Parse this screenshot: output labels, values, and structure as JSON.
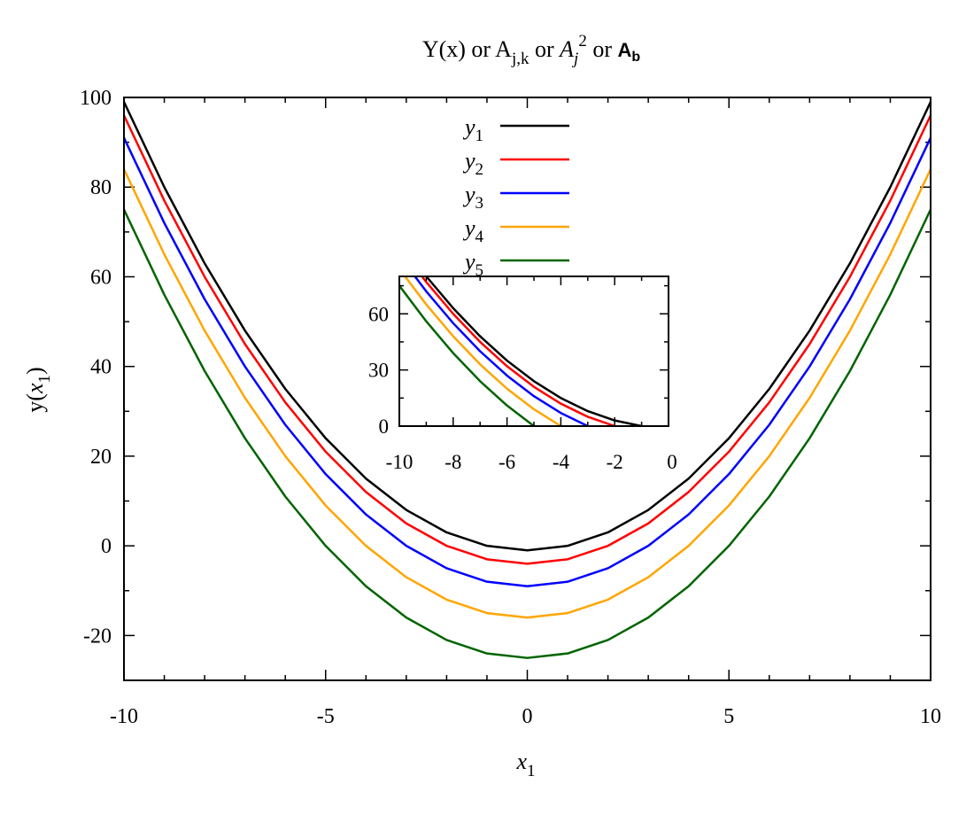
{
  "chart_data": [
    {
      "type": "line",
      "title": {
        "Y": "Y(x) or A",
        "Y_sub": "j,k",
        "mid": " or ",
        "A2": "A",
        "A2_sub": "j",
        "A2_sup": "2",
        "end": " or ",
        "Ab": "A",
        "Ab_sub": "b"
      },
      "xlabel": {
        "base": "x",
        "sub": "1"
      },
      "ylabel": {
        "pre": "y(",
        "base": "x",
        "sub": "1",
        "post": ")"
      },
      "xlim": [
        -10,
        10
      ],
      "ylim": [
        -30,
        100
      ],
      "xticks": [
        -10,
        -5,
        0,
        5,
        10
      ],
      "yticks": [
        -20,
        0,
        20,
        40,
        60,
        80,
        100
      ],
      "legend": "top-center",
      "x": [
        -10,
        -9,
        -8,
        -7,
        -6,
        -5,
        -4,
        -3,
        -2,
        -1,
        0,
        1,
        2,
        3,
        4,
        5,
        6,
        7,
        8,
        9,
        10
      ],
      "series": [
        {
          "name": "y",
          "sub": "1",
          "color": "#000000",
          "values": [
            99,
            80,
            63,
            48,
            35,
            24,
            15,
            8,
            3,
            0,
            -1,
            0,
            3,
            8,
            15,
            24,
            35,
            48,
            63,
            80,
            99
          ]
        },
        {
          "name": "y",
          "sub": "2",
          "color": "#ff0000",
          "values": [
            96,
            77,
            60,
            45,
            32,
            21,
            12,
            5,
            0,
            -3,
            -4,
            -3,
            0,
            5,
            12,
            21,
            32,
            45,
            60,
            77,
            96
          ]
        },
        {
          "name": "y",
          "sub": "3",
          "color": "#0000ff",
          "values": [
            91,
            72,
            55,
            40,
            27,
            16,
            7,
            0,
            -5,
            -8,
            -9,
            -8,
            -5,
            0,
            7,
            16,
            27,
            40,
            55,
            72,
            91
          ]
        },
        {
          "name": "y",
          "sub": "4",
          "color": "#ffa500",
          "values": [
            84,
            65,
            48,
            33,
            20,
            9,
            0,
            -7,
            -12,
            -15,
            -16,
            -15,
            -12,
            -7,
            0,
            9,
            20,
            33,
            48,
            65,
            84
          ]
        },
        {
          "name": "y",
          "sub": "5",
          "color": "#006400",
          "values": [
            75,
            56,
            39,
            24,
            11,
            0,
            -9,
            -16,
            -21,
            -24,
            -25,
            -24,
            -21,
            -16,
            -9,
            0,
            11,
            24,
            39,
            56,
            75
          ]
        }
      ]
    },
    {
      "type": "line",
      "role": "inset",
      "xlim": [
        -10,
        0
      ],
      "ylim": [
        0,
        80
      ],
      "xticks": [
        -10,
        -8,
        -6,
        -4,
        -2,
        0
      ],
      "yticks": [
        0,
        30,
        60
      ]
    }
  ]
}
